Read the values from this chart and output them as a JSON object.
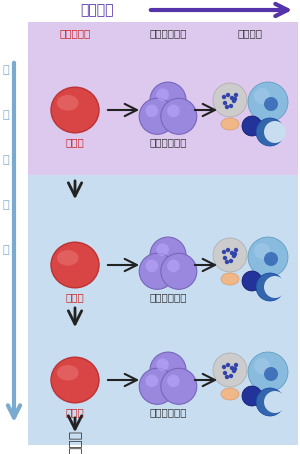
{
  "title_top": "多分化能",
  "title_left_chars": [
    "自",
    "己",
    "複",
    "製",
    "能"
  ],
  "col1_label": "造血幹細胞",
  "col2_label": "血液前駆細胞",
  "col3_label": "血液細胞",
  "label_quiescent": "静止期",
  "label_cycle": "増殖サイクル",
  "bg_purple": "#ddc8ee",
  "bg_blue": "#c8ddf0",
  "arrow_top_color": "#5533aa",
  "arrow_left_color": "#7aaacf",
  "col1_label_color": "#cc2222",
  "col2_label_color": "#333333",
  "col3_label_color": "#333333",
  "quiescent_color": "#cc2222",
  "cycle_color": "#333333",
  "stem_fill": "#d94444",
  "stem_highlight": "#e87777",
  "precursor_fill": "#9988dd",
  "precursor_highlight": "#bbaaff",
  "precursor_edge": "#7766bb",
  "arrow_body_color": "#222222",
  "blood_spotted_fill": "#cccccc",
  "blood_spotted_dots": "#4444aa",
  "blood_large_blue": "#4477bb",
  "blood_large_highlight": "#77aadd",
  "blood_orange": "#f0b888",
  "blood_dark_blue": "#223399",
  "blood_crescent": "#3366aa"
}
